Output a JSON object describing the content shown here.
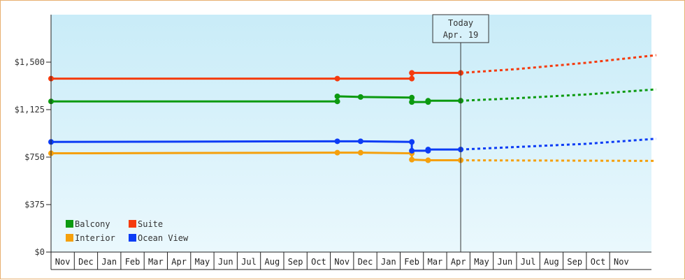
{
  "chart_data": {
    "type": "line",
    "title": "",
    "xlabel": "",
    "ylabel": "",
    "ylim": [
      0,
      1875
    ],
    "y_ticks": [
      {
        "value": 0,
        "label": "$0"
      },
      {
        "value": 375,
        "label": "$375"
      },
      {
        "value": 750,
        "label": "$750"
      },
      {
        "value": 1125,
        "label": "$1,125"
      },
      {
        "value": 1500,
        "label": "$1,500"
      }
    ],
    "months": [
      "Nov",
      "Dec",
      "Jan",
      "Feb",
      "Mar",
      "Apr",
      "May",
      "Jun",
      "Jul",
      "Aug",
      "Sep",
      "Oct",
      "Nov",
      "Dec",
      "Jan",
      "Feb",
      "Mar",
      "Apr",
      "May",
      "Jun",
      "Jul",
      "Aug",
      "Sep",
      "Oct",
      "Nov"
    ],
    "today": {
      "line1": "Today",
      "line2": "Apr. 19",
      "x": 17.6
    },
    "legend_position": "bottom-left",
    "background_gradient": [
      "#c9ecf8",
      "#eaf8fd"
    ],
    "series": [
      {
        "name": "Balcony",
        "color": "#0c9a10",
        "points": [
          [
            0,
            1190
          ],
          [
            12.3,
            1190
          ],
          [
            12.3,
            1230
          ],
          [
            13.3,
            1225
          ],
          [
            15.5,
            1220
          ],
          [
            15.5,
            1185
          ],
          [
            16.2,
            1185
          ],
          [
            16.2,
            1195
          ],
          [
            17.6,
            1195
          ]
        ],
        "markers": [
          [
            0,
            1190
          ],
          [
            12.3,
            1190
          ],
          [
            12.3,
            1230
          ],
          [
            13.3,
            1225
          ],
          [
            15.5,
            1220
          ],
          [
            15.5,
            1185
          ],
          [
            16.2,
            1185
          ],
          [
            16.2,
            1195
          ],
          [
            17.6,
            1195
          ]
        ],
        "forecast": [
          [
            17.6,
            1195
          ],
          [
            20,
            1215
          ],
          [
            23,
            1245
          ],
          [
            26,
            1285
          ]
        ]
      },
      {
        "name": "Suite",
        "color": "#f53b0e",
        "points": [
          [
            0,
            1370
          ],
          [
            12.3,
            1370
          ],
          [
            15.5,
            1370
          ],
          [
            15.5,
            1415
          ],
          [
            17.6,
            1415
          ]
        ],
        "markers": [
          [
            0,
            1370
          ],
          [
            12.3,
            1370
          ],
          [
            15.5,
            1370
          ],
          [
            15.5,
            1415
          ],
          [
            17.6,
            1415
          ]
        ],
        "forecast": [
          [
            17.6,
            1415
          ],
          [
            20,
            1445
          ],
          [
            23,
            1495
          ],
          [
            26,
            1555
          ]
        ]
      },
      {
        "name": "Interior",
        "color": "#f5a00c",
        "points": [
          [
            0,
            780
          ],
          [
            12.3,
            785
          ],
          [
            13.3,
            785
          ],
          [
            15.5,
            780
          ],
          [
            15.5,
            730
          ],
          [
            16.2,
            725
          ],
          [
            17.6,
            725
          ]
        ],
        "markers": [
          [
            0,
            780
          ],
          [
            12.3,
            785
          ],
          [
            13.3,
            785
          ],
          [
            15.5,
            780
          ],
          [
            15.5,
            730
          ],
          [
            16.2,
            725
          ],
          [
            17.6,
            725
          ]
        ],
        "forecast": [
          [
            17.6,
            725
          ],
          [
            26,
            720
          ]
        ]
      },
      {
        "name": "Ocean View",
        "color": "#0c3cf5",
        "points": [
          [
            0,
            870
          ],
          [
            12.3,
            875
          ],
          [
            13.3,
            875
          ],
          [
            15.5,
            870
          ],
          [
            15.5,
            800
          ],
          [
            16.2,
            800
          ],
          [
            16.2,
            810
          ],
          [
            17.6,
            810
          ]
        ],
        "markers": [
          [
            0,
            870
          ],
          [
            12.3,
            875
          ],
          [
            13.3,
            875
          ],
          [
            15.5,
            870
          ],
          [
            15.5,
            800
          ],
          [
            16.2,
            800
          ],
          [
            16.2,
            810
          ],
          [
            17.6,
            810
          ]
        ],
        "forecast": [
          [
            17.6,
            810
          ],
          [
            20,
            830
          ],
          [
            23,
            855
          ],
          [
            26,
            895
          ]
        ]
      }
    ]
  }
}
